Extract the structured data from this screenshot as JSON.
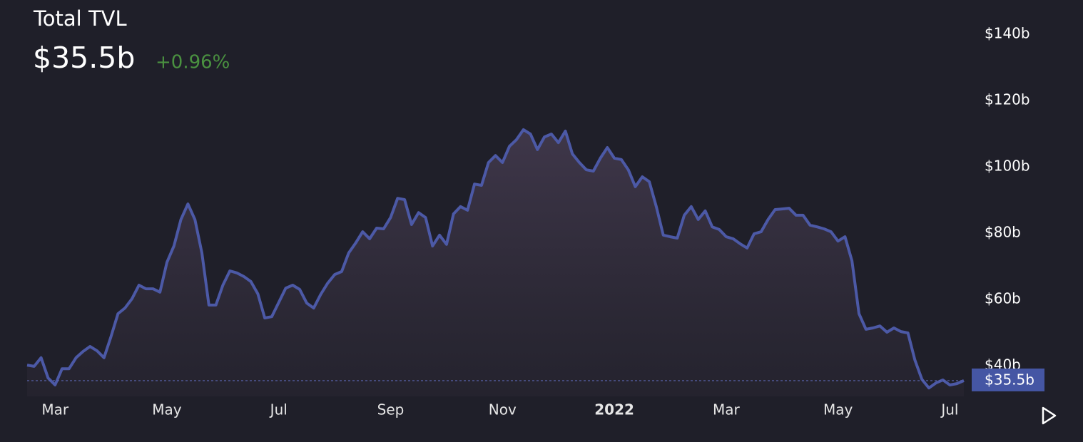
{
  "chart_data": {
    "type": "area",
    "title": "Total TVL",
    "current": {
      "value": 35.5,
      "label": "$35.5b"
    },
    "change": {
      "value": 0.96,
      "label": "+0.96%"
    },
    "color": "#4c59a6",
    "x": [
      1.5,
      1.625,
      1.75,
      1.875,
      2,
      2.125,
      2.25,
      2.375,
      2.5,
      2.625,
      2.75,
      2.875,
      3,
      3.125,
      3.25,
      3.375,
      3.5,
      3.625,
      3.75,
      3.875,
      4,
      4.125,
      4.25,
      4.375,
      4.5,
      4.625,
      4.75,
      4.875,
      5,
      5.125,
      5.25,
      5.375,
      5.5,
      5.625,
      5.75,
      5.875,
      6,
      6.125,
      6.25,
      6.375,
      6.5,
      6.625,
      6.75,
      6.875,
      7,
      7.125,
      7.25,
      7.375,
      7.5,
      7.625,
      7.75,
      7.875,
      8,
      8.125,
      8.25,
      8.375,
      8.5,
      8.625,
      8.75,
      8.875,
      9,
      9.125,
      9.25,
      9.375,
      9.5,
      9.625,
      9.75,
      9.875,
      10,
      10.125,
      10.25,
      10.375,
      10.5,
      10.625,
      10.75,
      10.875,
      11,
      11.125,
      11.25,
      11.375,
      11.5,
      11.625,
      11.75,
      11.875,
      12,
      12.125,
      12.25,
      12.375,
      12.5,
      12.625,
      12.75,
      12.875,
      13,
      13.125,
      13.25,
      13.375,
      13.5,
      13.625,
      13.75,
      13.875,
      14,
      14.125,
      14.25,
      14.375,
      14.5,
      14.625,
      14.75,
      14.875,
      15,
      15.125,
      15.25,
      15.375,
      15.5,
      15.625,
      15.75,
      15.875,
      16,
      16.125,
      16.25,
      16.375,
      16.5,
      16.625,
      16.75,
      16.875,
      17,
      17.125,
      17.25,
      17.375,
      17.5,
      17.625,
      17.75,
      17.875,
      18,
      18.125,
      18.25
    ],
    "values": [
      40.2,
      39.8,
      42.4,
      36.3,
      34.2,
      39.1,
      39.1,
      42.4,
      44.3,
      45.8,
      44.5,
      42.4,
      48.8,
      55.7,
      57.4,
      60.2,
      64.3,
      63.2,
      63.2,
      62.2,
      71.2,
      76.1,
      84.1,
      88.8,
      84.1,
      74.0,
      58.3,
      58.3,
      64.3,
      68.6,
      68.0,
      66.9,
      65.4,
      61.7,
      54.4,
      54.8,
      59.1,
      63.4,
      64.3,
      63.0,
      58.9,
      57.4,
      61.5,
      64.9,
      67.5,
      68.4,
      74.0,
      77.0,
      80.4,
      78.3,
      81.5,
      81.3,
      84.7,
      90.5,
      90.1,
      82.6,
      86.2,
      84.7,
      76.1,
      79.4,
      76.6,
      85.8,
      88.0,
      86.9,
      94.8,
      94.4,
      101.3,
      103.4,
      101.3,
      106.2,
      108.2,
      111.2,
      109.9,
      105.2,
      109.0,
      109.9,
      107.3,
      110.8,
      103.9,
      101.3,
      99.1,
      98.7,
      102.6,
      105.8,
      102.6,
      102.2,
      99.1,
      94.0,
      97.0,
      95.5,
      88.0,
      79.4,
      78.9,
      78.5,
      85.4,
      88.0,
      84.1,
      86.7,
      81.9,
      81.1,
      78.9,
      78.3,
      76.8,
      75.5,
      79.8,
      80.4,
      84.1,
      87.1,
      87.3,
      87.5,
      85.4,
      85.4,
      82.4,
      81.9,
      81.3,
      80.4,
      77.6,
      78.9,
      71.6,
      55.7,
      51.0,
      51.4,
      52.0,
      50.1,
      51.4,
      50.3,
      49.9,
      41.7,
      35.9,
      33.3,
      34.8,
      35.7,
      34.2,
      34.6,
      35.5
    ],
    "xlim": [
      1.5,
      18.25
    ],
    "xticks": [
      {
        "value": 2,
        "label": "Mar"
      },
      {
        "value": 4,
        "label": "May"
      },
      {
        "value": 6,
        "label": "Jul"
      },
      {
        "value": 8,
        "label": "Sep"
      },
      {
        "value": 10,
        "label": "Nov"
      },
      {
        "value": 12,
        "label": "2022"
      },
      {
        "value": 14,
        "label": "Mar"
      },
      {
        "value": 16,
        "label": "May"
      },
      {
        "value": 18,
        "label": "Jul"
      }
    ],
    "ylim": [
      30,
      145
    ],
    "yticks": [
      {
        "value": 40,
        "label": "$40b"
      },
      {
        "value": 60,
        "label": "$60b"
      },
      {
        "value": 80,
        "label": "$80b"
      },
      {
        "value": 100,
        "label": "$100b"
      },
      {
        "value": 120,
        "label": "$120b"
      },
      {
        "value": 140,
        "label": "$140b"
      }
    ],
    "grid": false
  }
}
